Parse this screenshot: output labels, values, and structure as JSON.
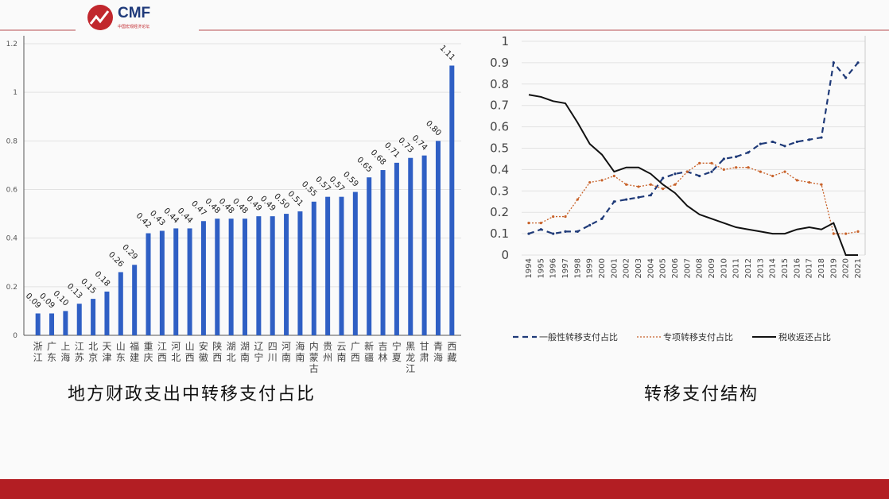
{
  "logo": {
    "text": "CMF",
    "subtitle": "中国宏观经济论坛"
  },
  "chart_data": [
    {
      "type": "bar",
      "title": "地方财政支出中转移支付占比",
      "categories": [
        "浙江",
        "广东",
        "上海",
        "江苏",
        "北京",
        "天津",
        "山东",
        "福建",
        "重庆",
        "江西",
        "河北",
        "山西",
        "安徽",
        "陕西",
        "湖北",
        "湖南",
        "辽宁",
        "四川",
        "河南",
        "海南",
        "内蒙古",
        "贵州",
        "云南",
        "广西",
        "新疆",
        "吉林",
        "宁夏",
        "黑龙江",
        "甘肃",
        "青海",
        "西藏"
      ],
      "values": [
        0.09,
        0.09,
        0.1,
        0.13,
        0.15,
        0.18,
        0.26,
        0.29,
        0.42,
        0.43,
        0.44,
        0.44,
        0.47,
        0.48,
        0.48,
        0.48,
        0.49,
        0.49,
        0.5,
        0.51,
        0.55,
        0.57,
        0.57,
        0.59,
        0.65,
        0.68,
        0.71,
        0.73,
        0.74,
        0.8,
        1.11
      ],
      "data_labels": [
        "0.09",
        "0.09",
        "0.10",
        "0.13",
        "0.15",
        "0.18",
        "0.26",
        "0.29",
        "0.42",
        "0.43",
        "0.44",
        "0.44",
        "0.47",
        "0.48",
        "0.48",
        "0.48",
        "0.49",
        "0.49",
        "0.50",
        "0.51",
        "0.55",
        "0.57",
        "0.57",
        "0.59",
        "0.65",
        "0.68",
        "0.71",
        "0.73",
        "0.74",
        "0.80",
        "1.11"
      ],
      "yticks": [
        "0",
        "0.2",
        "0.4",
        "0.6",
        "0.8",
        "1",
        "1.2"
      ],
      "ylim": [
        0,
        1.2
      ],
      "grid": true,
      "color": "#2f5fc4"
    },
    {
      "type": "line",
      "title": "转移支付结构",
      "x": [
        "1994",
        "1995",
        "1996",
        "1997",
        "1998",
        "1999",
        "2000",
        "2001",
        "2002",
        "2003",
        "2004",
        "2005",
        "2006",
        "2007",
        "2008",
        "2009",
        "2010",
        "2011",
        "2012",
        "2013",
        "2014",
        "2015",
        "2016",
        "2017",
        "2018",
        "2019",
        "2020",
        "2021"
      ],
      "yticks": [
        "0",
        "0.1",
        "0.2",
        "0.3",
        "0.4",
        "0.5",
        "0.6",
        "0.7",
        "0.8",
        "0.9",
        "1"
      ],
      "ylim": [
        0,
        1
      ],
      "grid": true,
      "legend_position": "bottom",
      "series": [
        {
          "name": "一般性转移支付占比",
          "style": "dashed",
          "color": "#1f3a78",
          "values": [
            0.1,
            0.12,
            0.1,
            0.11,
            0.11,
            0.14,
            0.17,
            0.25,
            0.26,
            0.27,
            0.28,
            0.36,
            0.38,
            0.39,
            0.37,
            0.39,
            0.45,
            0.46,
            0.48,
            0.52,
            0.53,
            0.51,
            0.53,
            0.54,
            0.55,
            0.9,
            0.83,
            0.9
          ]
        },
        {
          "name": "专项转移支付占比",
          "style": "dotted",
          "color": "#c8622a",
          "values": [
            0.15,
            0.15,
            0.18,
            0.18,
            0.26,
            0.34,
            0.35,
            0.37,
            0.33,
            0.32,
            0.33,
            0.31,
            0.33,
            0.39,
            0.43,
            0.43,
            0.4,
            0.41,
            0.41,
            0.39,
            0.37,
            0.39,
            0.35,
            0.34,
            0.33,
            0.1,
            0.1,
            0.11
          ]
        },
        {
          "name": "税收返还占比",
          "style": "solid",
          "color": "#111111",
          "values": [
            0.75,
            0.74,
            0.72,
            0.71,
            0.62,
            0.52,
            0.47,
            0.39,
            0.41,
            0.41,
            0.38,
            0.33,
            0.29,
            0.23,
            0.19,
            0.17,
            0.15,
            0.13,
            0.12,
            0.11,
            0.1,
            0.1,
            0.12,
            0.13,
            0.12,
            0.15,
            0.0,
            0.0
          ]
        }
      ]
    }
  ]
}
